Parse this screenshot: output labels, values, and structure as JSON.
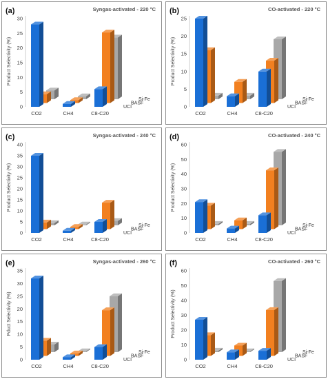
{
  "colors": {
    "UCI": "#1a6fd6",
    "BASF": "#f28020",
    "Si-Fe": "#a8a8a8",
    "panel_border": "#8c8c8c"
  },
  "series_order": [
    "UCI",
    "BASF",
    "Si-Fe"
  ],
  "chart_data": [
    {
      "type": "bar",
      "panel_label": "(a)",
      "title": "Syngas-activated - 220 °C",
      "ylabel": "Product Selectivity (%)",
      "ylim": [
        0,
        30
      ],
      "yticks": [
        0,
        5,
        10,
        15,
        20,
        25,
        30
      ],
      "categories": [
        "CO2",
        "CH4",
        "C8-C20"
      ],
      "series": [
        {
          "name": "UCI",
          "values": [
            28,
            1,
            6
          ]
        },
        {
          "name": "BASF",
          "values": [
            3,
            1,
            24
          ]
        },
        {
          "name": "Si-Fe",
          "values": [
            3,
            1,
            21
          ]
        }
      ]
    },
    {
      "type": "bar",
      "panel_label": "(b)",
      "title": "CO-activated - 220 °C",
      "ylabel": "Product Selectivity (%)",
      "ylim": [
        0,
        25
      ],
      "yticks": [
        0,
        5,
        10,
        15,
        20,
        25
      ],
      "categories": [
        "CO2",
        "CH4",
        "C8-C20"
      ],
      "series": [
        {
          "name": "UCI",
          "values": [
            25,
            3,
            10
          ]
        },
        {
          "name": "BASF",
          "values": [
            15,
            6,
            12
          ]
        },
        {
          "name": "Si-Fe",
          "values": [
            1,
            1,
            17
          ]
        }
      ]
    },
    {
      "type": "bar",
      "panel_label": "(c)",
      "title": "Syngas-activated - 240 °C",
      "ylabel": "Product Selectivity (%)",
      "ylim": [
        0,
        40
      ],
      "yticks": [
        0,
        5,
        10,
        15,
        20,
        25,
        30,
        35,
        40
      ],
      "categories": [
        "CO2",
        "CH4",
        "C8-C20"
      ],
      "series": [
        {
          "name": "UCI",
          "values": [
            35,
            1,
            5
          ]
        },
        {
          "name": "BASF",
          "values": [
            3,
            1,
            12
          ]
        },
        {
          "name": "Si-Fe",
          "values": [
            1,
            0,
            2
          ]
        }
      ]
    },
    {
      "type": "bar",
      "panel_label": "(d)",
      "title": "CO-activated - 240 °C",
      "ylabel": "Product Selectivity (%)",
      "ylim": [
        0,
        60
      ],
      "yticks": [
        0,
        10,
        20,
        30,
        40,
        50,
        60
      ],
      "categories": [
        "CO2",
        "CH4",
        "C8-C20"
      ],
      "series": [
        {
          "name": "UCI",
          "values": [
            21,
            3,
            12
          ]
        },
        {
          "name": "BASF",
          "values": [
            16,
            6,
            40
          ]
        },
        {
          "name": "Si-Fe",
          "values": [
            1,
            1,
            50
          ]
        }
      ]
    },
    {
      "type": "bar",
      "panel_label": "(e)",
      "title": "Syngas-activated - 260 °C",
      "ylabel": "Pduct Selectivity (%)",
      "ylim": [
        0,
        35
      ],
      "yticks": [
        0,
        5,
        10,
        15,
        20,
        25,
        30,
        35
      ],
      "categories": [
        "CO2",
        "CH4",
        "C8-C20"
      ],
      "series": [
        {
          "name": "UCI",
          "values": [
            32,
            1,
            5
          ]
        },
        {
          "name": "BASF",
          "values": [
            6,
            1,
            18
          ]
        },
        {
          "name": "Si-Fe",
          "values": [
            3,
            0,
            22
          ]
        }
      ]
    },
    {
      "type": "bar",
      "panel_label": "(f)",
      "title": "CO-activated - 260 °C",
      "ylabel": "Product Selectivity (%)",
      "ylim": [
        0,
        60
      ],
      "yticks": [
        0,
        10,
        20,
        30,
        40,
        50,
        60
      ],
      "categories": [
        "CO2",
        "CH4",
        "C8-C20"
      ],
      "series": [
        {
          "name": "UCI",
          "values": [
            27,
            5,
            6
          ]
        },
        {
          "name": "BASF",
          "values": [
            14,
            7,
            31
          ]
        },
        {
          "name": "Si-Fe",
          "values": [
            1,
            0,
            48
          ]
        }
      ]
    }
  ]
}
